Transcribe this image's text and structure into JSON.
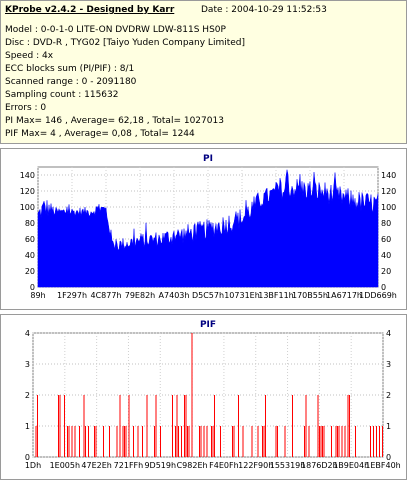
{
  "info": {
    "title": "KProbe v2.4.2 - Designed by Karr",
    "date": "Date : 2004-10-29 11:52:53",
    "model": "Model : 0-0-1-0 LITE-ON DVDRW LDW-811S   HS0P",
    "disc": "Disc : DVD-R , TYG02 [Taiyo Yuden Company Limited]",
    "speed": "Speed : 4x",
    "ecc": "ECC blocks sum (PI/PIF) : 8/1",
    "range": "Scanned range : 0 - 2091180",
    "sampling": "Sampling count : 115632",
    "errors": "Errors : 0",
    "pi_stats": "PI Max= 146 , Average= 62,18 , Total= 1027013",
    "pif_stats": "PIF Max= 4 , Average= 0,08 , Total= 1244"
  },
  "chart_data": [
    {
      "type": "area",
      "title": "PI",
      "color": "#0000ff",
      "ylim": [
        0,
        150
      ],
      "yticks": [
        0,
        20,
        40,
        60,
        80,
        100,
        120,
        140
      ],
      "xlabels": [
        "89h",
        "1F297h",
        "4C877h",
        "79E82h",
        "A7403h",
        "D5C57h",
        "10731Eh",
        "13BF11h",
        "170B55h",
        "1A6717h",
        "1DD669h"
      ],
      "envelope_x": [
        0,
        0.02,
        0.05,
        0.1,
        0.15,
        0.18,
        0.2,
        0.22,
        0.25,
        0.3,
        0.35,
        0.4,
        0.45,
        0.5,
        0.55,
        0.6,
        0.62,
        0.65,
        0.7,
        0.75,
        0.8,
        0.85,
        0.9,
        0.95,
        1.0
      ],
      "envelope_high": [
        100,
        115,
        100,
        100,
        100,
        105,
        105,
        60,
        62,
        68,
        70,
        75,
        80,
        85,
        92,
        100,
        108,
        120,
        130,
        138,
        135,
        132,
        125,
        120,
        118
      ],
      "envelope_low": [
        80,
        85,
        88,
        88,
        88,
        90,
        88,
        45,
        45,
        48,
        50,
        52,
        55,
        60,
        65,
        72,
        80,
        95,
        108,
        110,
        108,
        104,
        98,
        92,
        90
      ]
    },
    {
      "type": "bar",
      "title": "PIF",
      "color": "#ff0000",
      "ylim": [
        0,
        4
      ],
      "yticks": [
        0,
        1,
        2,
        3,
        4
      ],
      "xlabels": [
        "1Dh",
        "1E005h",
        "47E2Eh",
        "721FFh",
        "9D519h",
        "C982Eh",
        "F4E0Fh",
        "122F90h",
        "155319h",
        "1876D2h",
        "1B9E04h",
        "1EBF40h"
      ],
      "values_summary": "mostly 0 with frequent 1s, occasional 2s and one 4 near C982Eh"
    }
  ]
}
